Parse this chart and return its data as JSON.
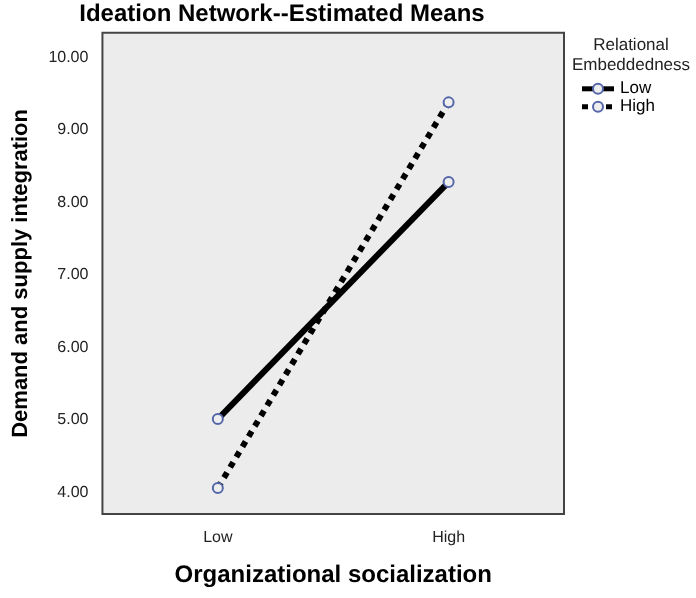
{
  "chart_data": {
    "type": "line",
    "title": "Ideation Network--Estimated Means",
    "xlabel": "Organizational socialization",
    "ylabel": "Demand and supply integration",
    "legend_title": "Relational Embeddedness",
    "categories": [
      "Low",
      "High"
    ],
    "series": [
      {
        "name": "Low",
        "color": "#000000",
        "values": [
          5.01,
          8.28
        ],
        "line_style": "solid"
      },
      {
        "name": "High",
        "color": "#000000",
        "values": [
          4.06,
          9.38
        ],
        "line_style": "dotted"
      }
    ],
    "ylim": [
      3.7,
      10.34
    ],
    "yticks": [
      {
        "value": 4,
        "label": "4.00"
      },
      {
        "value": 5,
        "label": "5.00"
      },
      {
        "value": 6,
        "label": "6.00"
      },
      {
        "value": 7,
        "label": "7.00"
      },
      {
        "value": 8,
        "label": "8.00"
      },
      {
        "value": 9,
        "label": "9.00"
      },
      {
        "value": 10,
        "label": "10.00"
      }
    ],
    "grid": false,
    "legend": "top right",
    "marker": "circle"
  }
}
